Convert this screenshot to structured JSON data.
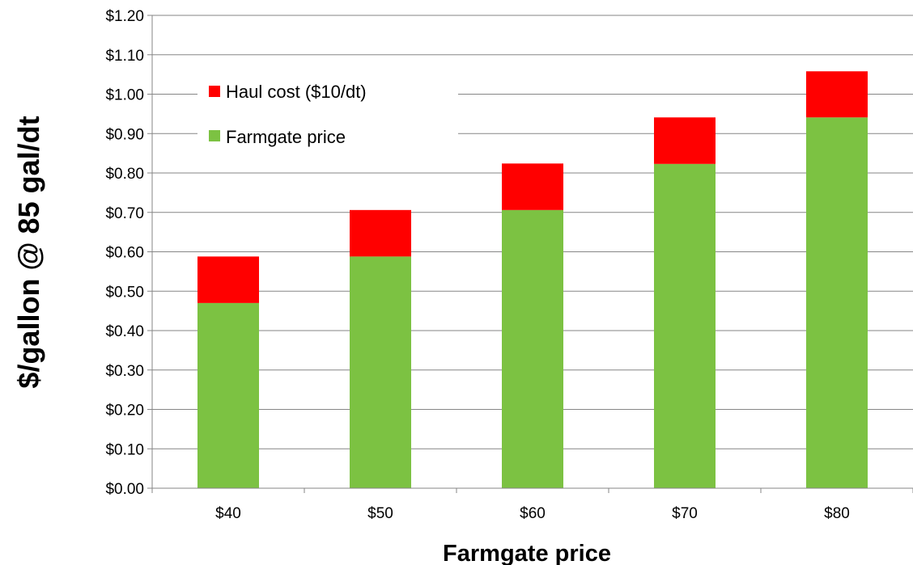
{
  "chart_data": {
    "type": "bar",
    "stacked": true,
    "categories": [
      "$40",
      "$50",
      "$60",
      "$70",
      "$80"
    ],
    "series": [
      {
        "name": "Farmgate price",
        "values": [
          0.47,
          0.588,
          0.706,
          0.823,
          0.941
        ],
        "color": "#7CC242"
      },
      {
        "name": "Haul cost ($10/dt)",
        "values": [
          0.118,
          0.118,
          0.118,
          0.118,
          0.117
        ],
        "color": "#FF0000"
      }
    ],
    "xlabel": "Farmgate price",
    "ylabel": "$/gallon @ 85 gal/dt",
    "ylim": [
      0,
      1.2
    ],
    "yticks": [
      "$0.00",
      "$0.10",
      "$0.20",
      "$0.30",
      "$0.40",
      "$0.50",
      "$0.60",
      "$0.70",
      "$0.80",
      "$0.90",
      "$1.00",
      "$1.10",
      "$1.20"
    ],
    "grid": true,
    "legend_position": "top-left",
    "legend_order": [
      "Haul cost ($10/dt)",
      "Farmgate price"
    ]
  }
}
